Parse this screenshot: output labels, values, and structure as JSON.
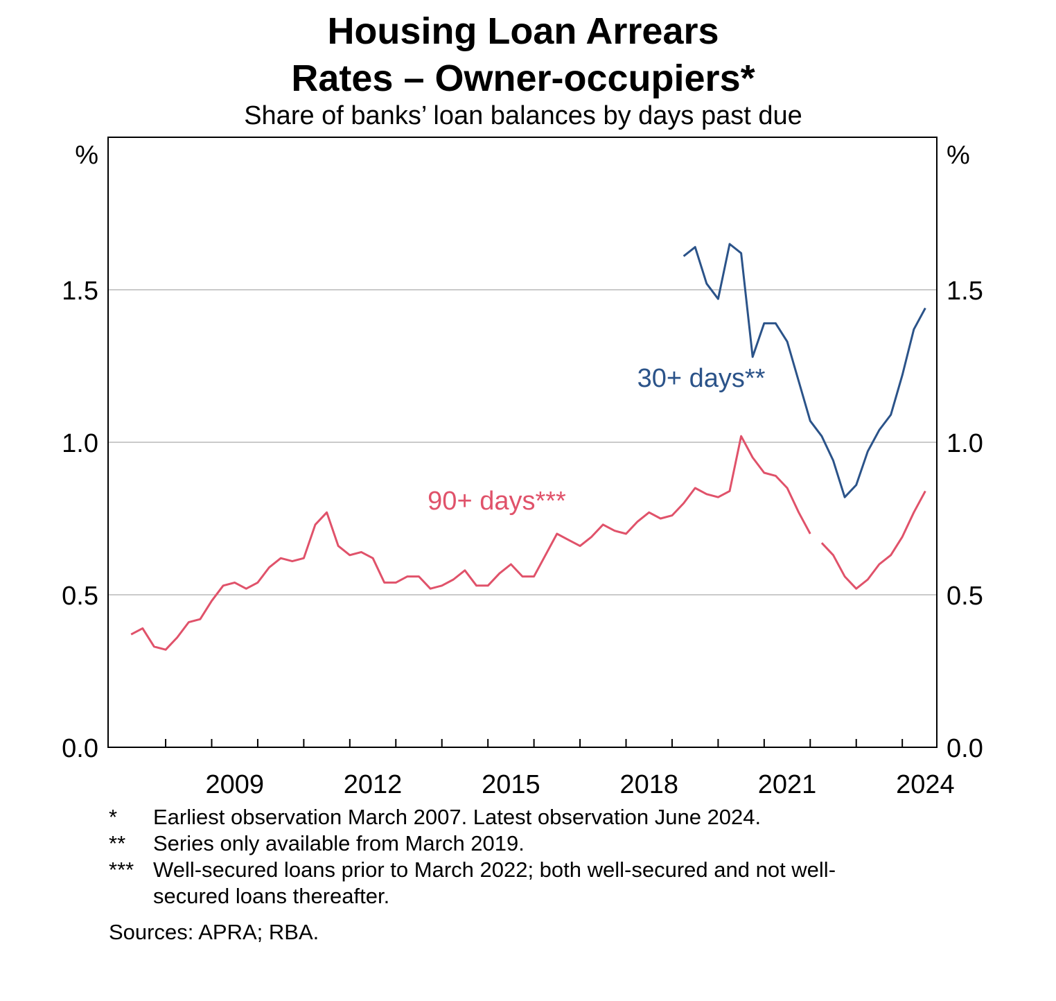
{
  "title_line1": "Housing Loan Arrears",
  "title_line2": "Rates – Owner-occupiers*",
  "subtitle": "Share of banks’ loan balances by days past due",
  "footnotes": [
    {
      "mark": "*",
      "text": "Earliest observation March 2007. Latest observation June 2024."
    },
    {
      "mark": "**",
      "text": "Series only available from March 2019."
    },
    {
      "mark": "***",
      "text": "Well-secured loans prior to March 2022; both well-secured and not well-secured loans thereafter."
    }
  ],
  "sources": "Sources:  APRA; RBA.",
  "chart_data": {
    "type": "line",
    "unit_left": "%",
    "unit_right": "%",
    "ylim": [
      0,
      2.0
    ],
    "yticks": [
      0.0,
      0.5,
      1.0,
      1.5
    ],
    "ytick_labels": [
      "0.0",
      "0.5",
      "1.0",
      "1.5"
    ],
    "xlim": [
      2006.75,
      2024.75
    ],
    "xtick_labels": [
      "2009",
      "2012",
      "2015",
      "2018",
      "2021",
      "2024"
    ],
    "grid": true,
    "series": [
      {
        "name": "30+ days**",
        "color": "#2b5389",
        "points": [
          [
            2019.25,
            1.61
          ],
          [
            2019.5,
            1.64
          ],
          [
            2019.75,
            1.52
          ],
          [
            2020.0,
            1.47
          ],
          [
            2020.25,
            1.65
          ],
          [
            2020.5,
            1.62
          ],
          [
            2020.75,
            1.28
          ],
          [
            2021.0,
            1.39
          ],
          [
            2021.25,
            1.39
          ],
          [
            2021.5,
            1.33
          ],
          [
            2021.75,
            1.2
          ],
          [
            2022.0,
            1.07
          ],
          [
            2022.25,
            1.02
          ],
          [
            2022.5,
            0.94
          ],
          [
            2022.75,
            0.82
          ],
          [
            2023.0,
            0.86
          ],
          [
            2023.25,
            0.97
          ],
          [
            2023.5,
            1.04
          ],
          [
            2023.75,
            1.09
          ],
          [
            2024.0,
            1.22
          ],
          [
            2024.25,
            1.37
          ],
          [
            2024.5,
            1.44
          ]
        ]
      },
      {
        "name": "90+ days***",
        "color": "#e0526a",
        "points": [
          [
            2007.25,
            0.37
          ],
          [
            2007.5,
            0.39
          ],
          [
            2007.75,
            0.33
          ],
          [
            2008.0,
            0.32
          ],
          [
            2008.25,
            0.36
          ],
          [
            2008.5,
            0.41
          ],
          [
            2008.75,
            0.42
          ],
          [
            2009.0,
            0.48
          ],
          [
            2009.25,
            0.53
          ],
          [
            2009.5,
            0.54
          ],
          [
            2009.75,
            0.52
          ],
          [
            2010.0,
            0.54
          ],
          [
            2010.25,
            0.59
          ],
          [
            2010.5,
            0.62
          ],
          [
            2010.75,
            0.61
          ],
          [
            2011.0,
            0.62
          ],
          [
            2011.25,
            0.73
          ],
          [
            2011.5,
            0.77
          ],
          [
            2011.75,
            0.66
          ],
          [
            2012.0,
            0.63
          ],
          [
            2012.25,
            0.64
          ],
          [
            2012.5,
            0.62
          ],
          [
            2012.75,
            0.54
          ],
          [
            2013.0,
            0.54
          ],
          [
            2013.25,
            0.56
          ],
          [
            2013.5,
            0.56
          ],
          [
            2013.75,
            0.52
          ],
          [
            2014.0,
            0.53
          ],
          [
            2014.25,
            0.55
          ],
          [
            2014.5,
            0.58
          ],
          [
            2014.75,
            0.53
          ],
          [
            2015.0,
            0.53
          ],
          [
            2015.25,
            0.57
          ],
          [
            2015.5,
            0.6
          ],
          [
            2015.75,
            0.56
          ],
          [
            2016.0,
            0.56
          ],
          [
            2016.25,
            0.63
          ],
          [
            2016.5,
            0.7
          ],
          [
            2016.75,
            0.68
          ],
          [
            2017.0,
            0.66
          ],
          [
            2017.25,
            0.69
          ],
          [
            2017.5,
            0.73
          ],
          [
            2017.75,
            0.71
          ],
          [
            2018.0,
            0.7
          ],
          [
            2018.25,
            0.74
          ],
          [
            2018.5,
            0.77
          ],
          [
            2018.75,
            0.75
          ],
          [
            2019.0,
            0.76
          ],
          [
            2019.25,
            0.8
          ],
          [
            2019.5,
            0.85
          ],
          [
            2019.75,
            0.83
          ],
          [
            2020.0,
            0.82
          ],
          [
            2020.25,
            0.84
          ],
          [
            2020.5,
            1.02
          ],
          [
            2020.75,
            0.95
          ],
          [
            2021.0,
            0.9
          ],
          [
            2021.25,
            0.89
          ],
          [
            2021.5,
            0.85
          ],
          [
            2021.75,
            0.77
          ],
          [
            2022.0,
            0.7
          ],
          null,
          [
            2022.25,
            0.67
          ],
          [
            2022.5,
            0.63
          ],
          [
            2022.75,
            0.56
          ],
          [
            2023.0,
            0.52
          ],
          [
            2023.25,
            0.55
          ],
          [
            2023.5,
            0.6
          ],
          [
            2023.75,
            0.63
          ],
          [
            2024.0,
            0.69
          ],
          [
            2024.25,
            0.77
          ],
          [
            2024.5,
            0.84
          ]
        ]
      }
    ]
  }
}
